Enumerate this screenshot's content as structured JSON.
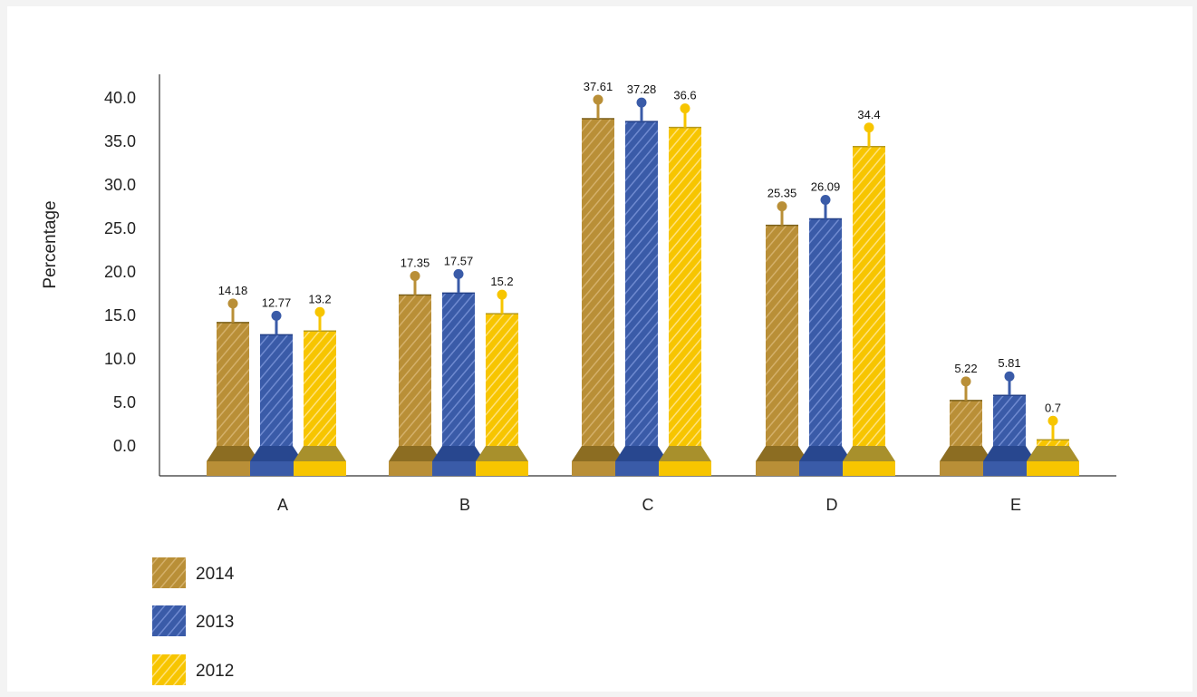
{
  "chart_data": {
    "type": "bar",
    "categories": [
      "A",
      "B",
      "C",
      "D",
      "E"
    ],
    "series": [
      {
        "name": "2014",
        "values": [
          14.18,
          17.35,
          37.61,
          25.35,
          5.22
        ]
      },
      {
        "name": "2013",
        "values": [
          12.77,
          17.57,
          37.28,
          26.09,
          5.81
        ]
      },
      {
        "name": "2012",
        "values": [
          13.2,
          15.2,
          36.6,
          34.4,
          0.7
        ]
      }
    ],
    "title": "",
    "xlabel": "",
    "ylabel": "Percentage",
    "ylim": [
      0,
      40
    ],
    "yticks": [
      "0.0",
      "5.0",
      "10.0",
      "15.0",
      "20.0",
      "25.0",
      "30.0",
      "35.0",
      "40.0"
    ],
    "grid": false,
    "legend_position": "bottom-left",
    "colors": {
      "2014": {
        "main": "#b98f37",
        "light": "#d4b06a",
        "dark": "#7a5f18",
        "plate": "#8c6d22"
      },
      "2013": {
        "main": "#3a5ba8",
        "light": "#6f8ad0",
        "dark": "#223f86",
        "plate": "#28478f"
      },
      "2012": {
        "main": "#f7c500",
        "light": "#ffe27a",
        "dark": "#b59a20",
        "plate": "#a8902c"
      }
    }
  }
}
